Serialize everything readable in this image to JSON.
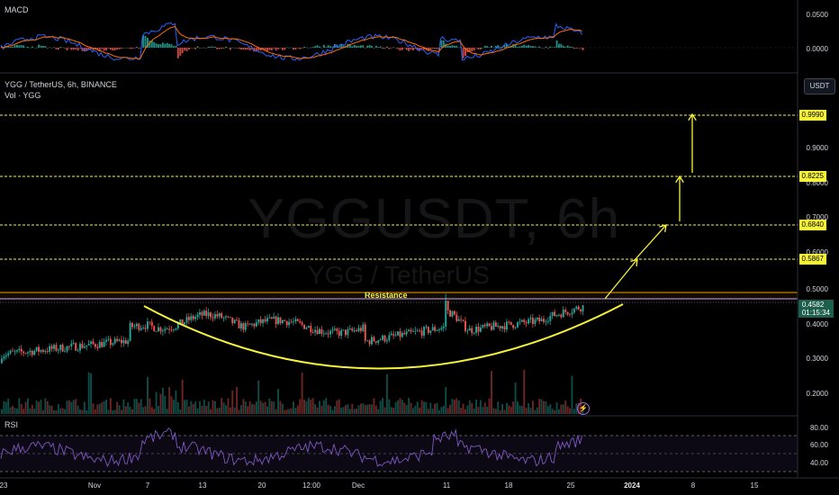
{
  "panes": {
    "macd": {
      "title": "MACD",
      "ticks": [
        "0.0500",
        "0.0000"
      ]
    },
    "main": {
      "symbol_line": "YGG / TetherUS, 6h, BINANCE",
      "volume_line": "Vol · YGG",
      "currency_button": "USDT",
      "watermark_title": "YGGUSDT, 6h",
      "watermark_subtitle": "YGG / TetherUS",
      "price_ticks": [
        "0.9000",
        "0.8000",
        "0.7000",
        "0.6000",
        "0.5000",
        "0.4000",
        "0.3000",
        "0.2000"
      ],
      "levels": [
        "0.9990",
        "0.8225",
        "0.6840",
        "0.5867"
      ],
      "resistance_label": "Resistance",
      "last_price": "0.4582",
      "countdown": "01:15:34",
      "event_icon": "lightning-icon"
    },
    "rsi": {
      "title": "RSI",
      "ticks": [
        "80.00",
        "60.00",
        "40.00"
      ]
    }
  },
  "x_axis": {
    "labels": [
      {
        "text": "23",
        "bold": false
      },
      {
        "text": "Nov",
        "bold": false
      },
      {
        "text": "7",
        "bold": false
      },
      {
        "text": "13",
        "bold": false
      },
      {
        "text": "20",
        "bold": false
      },
      {
        "text": "12:00",
        "bold": false
      },
      {
        "text": "Dec",
        "bold": false
      },
      {
        "text": "11",
        "bold": false
      },
      {
        "text": "18",
        "bold": false
      },
      {
        "text": "25",
        "bold": false
      },
      {
        "text": "2024",
        "bold": true
      },
      {
        "text": "8",
        "bold": false
      },
      {
        "text": "15",
        "bold": false
      }
    ]
  },
  "colors": {
    "background": "#000000",
    "up": "#26a69a",
    "down": "#ef5350",
    "annotation": "#f7f33b",
    "rsi_line": "#7e57c2",
    "macd_line": "#2962ff",
    "signal_line": "#ff6d00"
  }
}
